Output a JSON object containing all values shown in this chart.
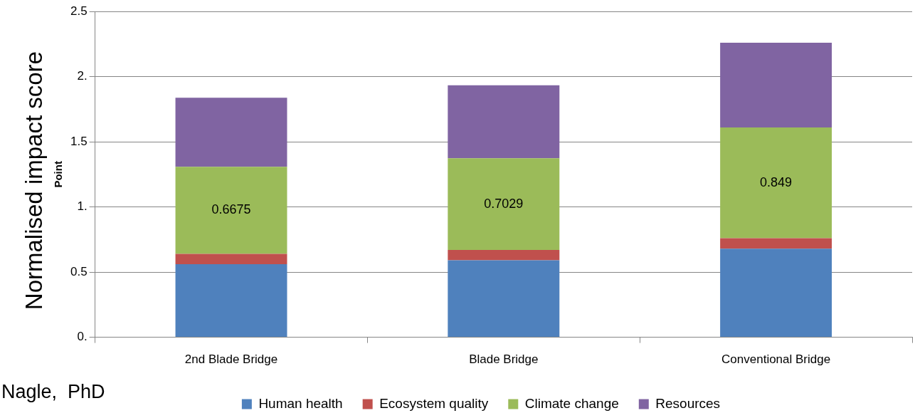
{
  "chart_data": {
    "type": "bar",
    "stacked": true,
    "ylabel": "Point",
    "categories": [
      "2nd Blade Bridge",
      "Blade Bridge",
      "Conventional Bridge"
    ],
    "series": [
      {
        "name": "Human health",
        "color": "#4f81bd",
        "values": [
          0.56,
          0.59,
          0.68
        ]
      },
      {
        "name": "Ecosystem quality",
        "color": "#c0504d",
        "values": [
          0.08,
          0.08,
          0.08
        ]
      },
      {
        "name": "Climate change",
        "color": "#9bbb59",
        "values": [
          0.6675,
          0.7029,
          0.849
        ],
        "value_labels": [
          "0.6675",
          "0.7029",
          "0.849"
        ]
      },
      {
        "name": "Resources",
        "color": "#8064a2",
        "values": [
          0.53,
          0.56,
          0.65
        ]
      }
    ],
    "ylim": [
      0,
      2.5
    ],
    "yticks": [
      {
        "value": 0,
        "label": "0."
      },
      0.5,
      {
        "value": 1,
        "label": "1."
      },
      1.5,
      {
        "value": 2,
        "label": "2."
      },
      2.5
    ],
    "grid": "y",
    "legend": "bottom",
    "annotations": [
      "Normalised impact score",
      "Nagle,  PhD"
    ]
  }
}
